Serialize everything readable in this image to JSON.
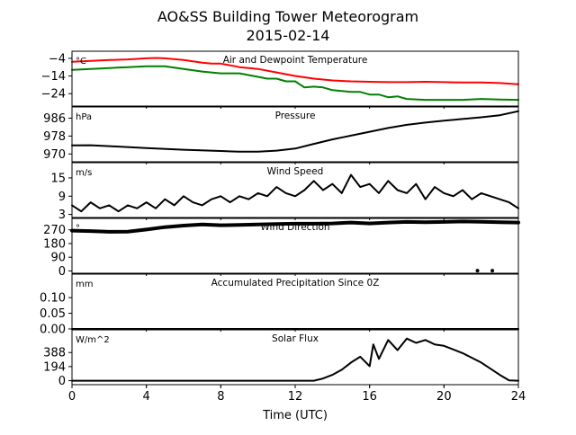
{
  "figure": {
    "title_line1": "AO&SS Building Tower Meteorogram",
    "title_line2": "2015-02-14",
    "xlabel": "Time (UTC)",
    "xticks": [
      "0",
      "4",
      "8",
      "12",
      "16",
      "20",
      "24"
    ],
    "xlim": [
      0,
      24
    ]
  },
  "chart_data": [
    {
      "type": "line",
      "title": "Air and Dewpoint Temperature",
      "unit_label": "°C",
      "ylim": [
        -31,
        0
      ],
      "yticks": [
        -4,
        -14,
        -24
      ],
      "grid": false,
      "series": [
        {
          "color": "#ff0000",
          "x": [
            0,
            1,
            2,
            3,
            4,
            4.5,
            5,
            6,
            7,
            7.5,
            8,
            8.5,
            9,
            10,
            11,
            12,
            13,
            14,
            15,
            16,
            17,
            18,
            19,
            20,
            21,
            22,
            23,
            24
          ],
          "y": [
            -6,
            -5.5,
            -5,
            -4.6,
            -4,
            -3.8,
            -4,
            -5,
            -6.5,
            -7,
            -7,
            -8,
            -9,
            -10,
            -12,
            -14,
            -15.5,
            -16.5,
            -17,
            -17.3,
            -17.5,
            -17.5,
            -17.3,
            -17.5,
            -17.7,
            -17.7,
            -18,
            -18.7
          ]
        },
        {
          "color": "#008000",
          "x": [
            0,
            1,
            2,
            3,
            4,
            5,
            6,
            7,
            8,
            9,
            10,
            10.5,
            11,
            11.5,
            12,
            12.5,
            13,
            13.5,
            14,
            15,
            15.5,
            16,
            16.5,
            17,
            17.5,
            18,
            19,
            20,
            21,
            22,
            23,
            24
          ],
          "y": [
            -10.5,
            -10,
            -9.5,
            -9,
            -8.5,
            -8.5,
            -10,
            -11.5,
            -12.5,
            -12.5,
            -14.5,
            -15.5,
            -15.5,
            -17,
            -17,
            -20.5,
            -20,
            -20.5,
            -22,
            -23,
            -23,
            -24.5,
            -24.5,
            -26,
            -25.5,
            -27,
            -27.5,
            -27.5,
            -27.5,
            -27,
            -27.3,
            -27.5
          ]
        }
      ]
    },
    {
      "type": "line",
      "title": "Pressure",
      "unit_label": "hPa",
      "ylim": [
        966.5,
        991
      ],
      "yticks": [
        970,
        978,
        986
      ],
      "grid": false,
      "series": [
        {
          "color": "#000000",
          "x": [
            0,
            1,
            2,
            4,
            6,
            8,
            9,
            10,
            11,
            12,
            13,
            14,
            15,
            16,
            17,
            18,
            19,
            20,
            21,
            22,
            23,
            24
          ],
          "y": [
            973.8,
            973.9,
            973.5,
            972.6,
            971.9,
            971.3,
            971.0,
            971.0,
            971.5,
            972.4,
            974.5,
            976.5,
            978.2,
            979.9,
            981.6,
            983.0,
            984.0,
            984.9,
            985.6,
            986.4,
            987.3,
            989.1
          ]
        }
      ]
    },
    {
      "type": "line",
      "title": "Wind Speed",
      "unit_label": "m/s",
      "ylim": [
        2,
        20
      ],
      "yticks": [
        3,
        9,
        15
      ],
      "grid": false,
      "series": [
        {
          "color": "#000000",
          "x": [
            0,
            0.5,
            1,
            1.5,
            2,
            2.5,
            3,
            3.5,
            4,
            4.5,
            5,
            5.5,
            6,
            6.5,
            7,
            7.5,
            8,
            8.5,
            9,
            9.5,
            10,
            10.5,
            11,
            11.5,
            12,
            12.5,
            13,
            13.5,
            14,
            14.5,
            15,
            15.5,
            16,
            16.5,
            17,
            17.5,
            18,
            18.5,
            19,
            19.5,
            20,
            20.5,
            21,
            21.5,
            22,
            22.5,
            23,
            23.5,
            24
          ],
          "y": [
            6,
            4,
            7,
            5,
            6,
            4,
            6,
            5,
            7,
            5,
            8,
            6,
            9,
            7,
            6,
            8,
            9,
            7,
            9,
            8,
            10,
            9,
            12,
            10,
            9,
            11,
            14,
            11,
            13,
            10,
            16,
            12,
            13,
            10,
            14,
            11,
            10,
            13,
            8,
            12,
            10,
            9,
            11,
            8,
            10,
            9,
            8,
            7,
            5
          ]
        }
      ]
    },
    {
      "type": "scatter",
      "title": "Wind Direction",
      "unit_label": "°",
      "ylim": [
        -15,
        345
      ],
      "yticks": [
        0,
        90,
        180,
        270
      ],
      "grid": false,
      "series": [
        {
          "color": "#000000",
          "x": [
            0,
            1,
            2,
            3,
            4,
            5,
            6,
            7,
            8,
            9,
            10,
            11,
            12,
            13,
            14,
            15,
            16,
            17,
            18,
            19,
            20,
            21,
            22,
            23,
            24
          ],
          "y": [
            265,
            262,
            257,
            258,
            272,
            288,
            298,
            305,
            300,
            302,
            305,
            308,
            310,
            310,
            312,
            318,
            312,
            318,
            322,
            320,
            322,
            325,
            323,
            320,
            318
          ]
        },
        {
          "color": "#000000",
          "x": [
            21.8,
            22.6
          ],
          "y": [
            2,
            2
          ]
        }
      ]
    },
    {
      "type": "line",
      "title": "Accumulated Precipitation Since 0Z",
      "unit_label": "mm",
      "ylim": [
        0,
        0.175
      ],
      "yticks": [
        0.0,
        0.05,
        0.1
      ],
      "ytick_labels": [
        "0.00",
        "0.05",
        "0.10"
      ],
      "grid": false,
      "series": [
        {
          "color": "#000000",
          "x": [
            0,
            24
          ],
          "y": [
            0,
            0
          ]
        }
      ]
    },
    {
      "type": "line",
      "title": "Solar Flux",
      "unit_label": "W/m^2",
      "ylim": [
        -55,
        700
      ],
      "yticks": [
        0,
        194,
        388
      ],
      "grid": false,
      "series": [
        {
          "color": "#000000",
          "x": [
            0,
            13,
            13.5,
            14,
            14.5,
            15,
            15.5,
            16,
            16.2,
            16.5,
            17,
            17.5,
            18,
            18.5,
            19,
            19.5,
            20,
            21,
            22,
            23,
            23.5,
            24
          ],
          "y": [
            0,
            0,
            30,
            80,
            150,
            250,
            330,
            200,
            500,
            300,
            560,
            420,
            580,
            520,
            560,
            500,
            480,
            380,
            250,
            80,
            5,
            0
          ]
        }
      ]
    }
  ]
}
